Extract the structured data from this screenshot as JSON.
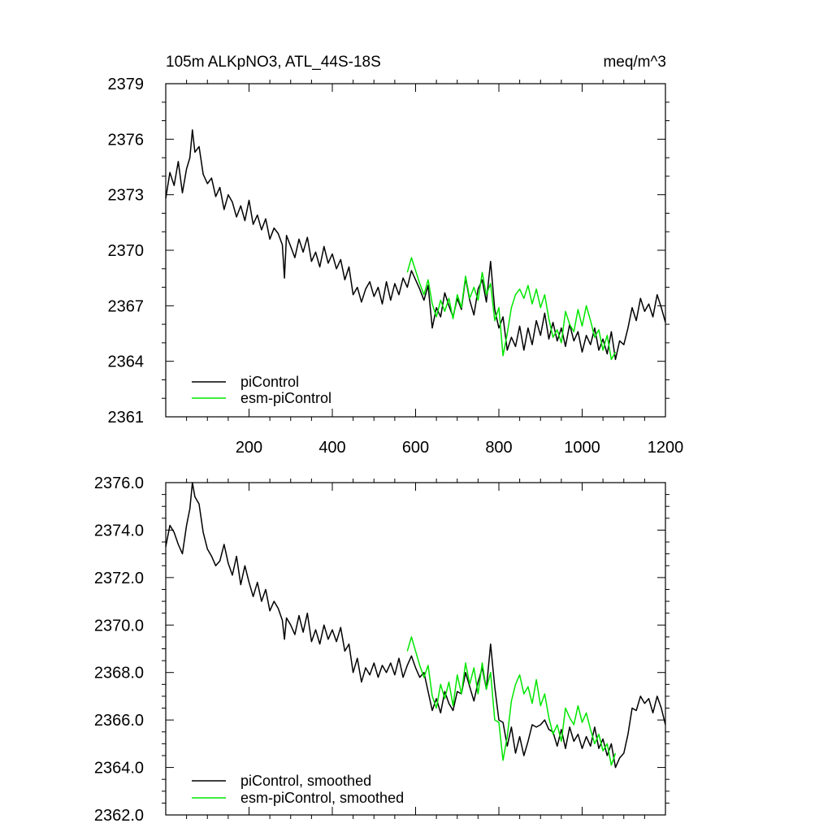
{
  "chart_data": [
    {
      "type": "line",
      "title_left": "105m ALKpNO3, ATL_44S-18S",
      "title_right": "meq/m^3",
      "xlabel": "",
      "ylabel": "",
      "xlim": [
        0,
        1200
      ],
      "ylim": [
        2361,
        2379
      ],
      "x_ticks": [
        200,
        400,
        600,
        800,
        1000,
        1200
      ],
      "x_tick_labels": [
        "200",
        "400",
        "600",
        "800",
        "1000",
        "1200"
      ],
      "y_ticks": [
        2361,
        2364,
        2367,
        2370,
        2373,
        2376,
        2379
      ],
      "y_tick_labels": [
        "2361",
        "2364",
        "2367",
        "2370",
        "2373",
        "2376",
        "2379"
      ],
      "legend_position": "bottom-left",
      "series": [
        {
          "name": "piControl",
          "color": "#000000",
          "x": [
            0,
            10,
            20,
            30,
            40,
            50,
            58,
            64,
            70,
            80,
            90,
            100,
            110,
            120,
            130,
            140,
            150,
            160,
            170,
            180,
            190,
            200,
            210,
            220,
            230,
            240,
            250,
            260,
            270,
            280,
            285,
            290,
            300,
            310,
            320,
            330,
            340,
            350,
            360,
            370,
            380,
            390,
            400,
            410,
            420,
            430,
            440,
            450,
            460,
            470,
            480,
            490,
            500,
            510,
            520,
            530,
            540,
            550,
            560,
            570,
            580,
            590,
            600,
            610,
            620,
            630,
            640,
            650,
            660,
            670,
            680,
            690,
            700,
            710,
            720,
            730,
            740,
            750,
            760,
            770,
            780,
            790,
            800,
            810,
            820,
            830,
            840,
            850,
            860,
            870,
            880,
            890,
            900,
            910,
            920,
            930,
            940,
            950,
            960,
            970,
            980,
            990,
            1000,
            1010,
            1020,
            1030,
            1040,
            1050,
            1060,
            1070,
            1080,
            1090,
            1100,
            1110,
            1120,
            1130,
            1140,
            1150,
            1160,
            1170,
            1180,
            1190,
            1200
          ],
          "values": [
            2372.8,
            2374.2,
            2373.5,
            2374.8,
            2373.1,
            2374.4,
            2375.0,
            2376.5,
            2375.3,
            2375.6,
            2374.1,
            2373.6,
            2373.9,
            2372.9,
            2373.4,
            2372.2,
            2373.0,
            2372.6,
            2371.8,
            2372.4,
            2371.6,
            2372.7,
            2371.4,
            2371.9,
            2371.1,
            2371.7,
            2370.6,
            2371.2,
            2370.9,
            2370.3,
            2368.5,
            2370.8,
            2370.2,
            2369.6,
            2370.6,
            2369.9,
            2370.7,
            2369.4,
            2369.9,
            2369.1,
            2370.2,
            2369.3,
            2369.8,
            2369.0,
            2369.5,
            2368.4,
            2369.1,
            2367.6,
            2368.0,
            2367.2,
            2367.9,
            2368.3,
            2367.5,
            2368.0,
            2367.1,
            2368.3,
            2367.3,
            2368.2,
            2367.6,
            2368.5,
            2368.0,
            2368.9,
            2368.4,
            2367.9,
            2367.3,
            2368.1,
            2365.8,
            2366.9,
            2366.4,
            2367.7,
            2367.0,
            2366.4,
            2367.4,
            2366.8,
            2368.5,
            2367.3,
            2366.5,
            2367.9,
            2368.4,
            2367.2,
            2369.4,
            2366.8,
            2365.8,
            2366.4,
            2364.6,
            2365.3,
            2364.8,
            2365.9,
            2364.6,
            2365.8,
            2364.9,
            2366.2,
            2365.4,
            2366.6,
            2365.2,
            2366.1,
            2365.1,
            2365.8,
            2364.8,
            2366.0,
            2365.1,
            2365.6,
            2364.5,
            2365.4,
            2364.9,
            2365.8,
            2364.6,
            2365.2,
            2364.4,
            2365.6,
            2364.1,
            2365.1,
            2364.9,
            2365.8,
            2366.9,
            2366.2,
            2367.4,
            2366.7,
            2367.1,
            2366.4,
            2367.6,
            2366.9,
            2366.1
          ]
        },
        {
          "name": "esm-piControl",
          "color": "#00e600",
          "x": [
            580,
            590,
            600,
            610,
            620,
            630,
            640,
            650,
            660,
            670,
            680,
            690,
            700,
            710,
            720,
            730,
            740,
            750,
            760,
            770,
            780,
            790,
            800,
            810,
            820,
            830,
            840,
            850,
            860,
            870,
            880,
            890,
            900,
            910,
            920,
            930,
            940,
            950,
            960,
            970,
            980,
            990,
            1000,
            1010,
            1020,
            1030,
            1040,
            1050,
            1060,
            1070,
            1080
          ],
          "values": [
            2368.8,
            2369.6,
            2368.9,
            2368.2,
            2367.6,
            2368.4,
            2367.1,
            2366.4,
            2367.3,
            2366.7,
            2367.4,
            2366.3,
            2367.6,
            2366.9,
            2368.6,
            2367.4,
            2368.0,
            2367.3,
            2368.8,
            2367.6,
            2368.2,
            2366.2,
            2366.9,
            2364.3,
            2365.5,
            2366.9,
            2367.6,
            2367.9,
            2367.4,
            2368.1,
            2367.1,
            2367.9,
            2366.9,
            2367.6,
            2366.3,
            2365.3,
            2365.7,
            2365.0,
            2366.7,
            2366.0,
            2365.6,
            2366.8,
            2365.9,
            2367.0,
            2366.2,
            2365.3,
            2365.7,
            2364.6,
            2365.4,
            2364.1,
            2364.5
          ]
        }
      ]
    },
    {
      "type": "line",
      "xlabel": "",
      "ylabel": "",
      "xlim": [
        0,
        1200
      ],
      "ylim": [
        2362.0,
        2376.0
      ],
      "x_ticks": [
        200,
        400,
        600,
        800,
        1000,
        1200
      ],
      "y_ticks": [
        2362.0,
        2364.0,
        2366.0,
        2368.0,
        2370.0,
        2372.0,
        2374.0,
        2376.0
      ],
      "y_tick_labels": [
        "2362.0",
        "2364.0",
        "2366.0",
        "2368.0",
        "2370.0",
        "2372.0",
        "2374.0",
        "2376.0"
      ],
      "legend_position": "bottom-left",
      "series": [
        {
          "name": "piControl, smoothed",
          "color": "#000000",
          "x": [
            0,
            10,
            20,
            30,
            40,
            50,
            58,
            64,
            70,
            80,
            90,
            100,
            110,
            120,
            130,
            140,
            150,
            160,
            170,
            180,
            190,
            200,
            210,
            220,
            230,
            240,
            250,
            260,
            270,
            280,
            285,
            290,
            300,
            310,
            320,
            330,
            340,
            350,
            360,
            370,
            380,
            390,
            400,
            410,
            420,
            430,
            440,
            450,
            460,
            470,
            480,
            490,
            500,
            510,
            520,
            530,
            540,
            550,
            560,
            570,
            580,
            590,
            600,
            610,
            620,
            630,
            640,
            650,
            660,
            670,
            680,
            690,
            700,
            710,
            720,
            730,
            740,
            750,
            760,
            770,
            780,
            790,
            800,
            810,
            820,
            830,
            840,
            850,
            860,
            870,
            880,
            890,
            900,
            910,
            920,
            930,
            940,
            950,
            960,
            970,
            980,
            990,
            1000,
            1010,
            1020,
            1030,
            1040,
            1050,
            1060,
            1070,
            1080,
            1090,
            1100,
            1110,
            1120,
            1130,
            1140,
            1150,
            1160,
            1170,
            1180,
            1190,
            1200
          ],
          "values": [
            2373.3,
            2374.2,
            2373.9,
            2373.4,
            2373.0,
            2374.2,
            2374.9,
            2376.0,
            2375.4,
            2375.1,
            2373.9,
            2373.2,
            2372.9,
            2372.5,
            2372.7,
            2373.4,
            2372.6,
            2372.1,
            2372.9,
            2371.7,
            2372.5,
            2371.8,
            2371.2,
            2371.8,
            2371.0,
            2371.5,
            2370.6,
            2371.0,
            2370.7,
            2370.2,
            2369.4,
            2370.3,
            2370.0,
            2369.6,
            2370.4,
            2369.7,
            2370.5,
            2369.3,
            2369.8,
            2369.2,
            2370.0,
            2369.4,
            2369.8,
            2369.3,
            2369.9,
            2368.9,
            2369.2,
            2368.0,
            2368.6,
            2367.6,
            2368.2,
            2367.9,
            2368.4,
            2367.8,
            2368.3,
            2368.0,
            2368.4,
            2367.9,
            2368.6,
            2367.8,
            2368.3,
            2368.7,
            2368.2,
            2367.8,
            2368.0,
            2367.2,
            2366.4,
            2366.9,
            2366.3,
            2367.2,
            2366.7,
            2366.4,
            2367.2,
            2367.1,
            2368.0,
            2367.4,
            2366.8,
            2367.6,
            2368.2,
            2367.3,
            2369.2,
            2367.4,
            2366.0,
            2365.9,
            2364.9,
            2365.7,
            2364.6,
            2365.3,
            2364.5,
            2365.1,
            2365.8,
            2365.7,
            2365.8,
            2366.0,
            2365.6,
            2365.5,
            2364.9,
            2365.6,
            2364.8,
            2365.7,
            2365.1,
            2365.4,
            2364.8,
            2365.3,
            2364.9,
            2365.7,
            2364.8,
            2365.2,
            2364.5,
            2365.0,
            2364.0,
            2364.4,
            2364.6,
            2365.4,
            2366.5,
            2366.4,
            2367.0,
            2366.7,
            2366.9,
            2366.3,
            2367.0,
            2366.5,
            2365.8
          ]
        },
        {
          "name": "esm-piControl, smoothed",
          "color": "#00e600",
          "x": [
            580,
            590,
            600,
            610,
            620,
            630,
            640,
            650,
            660,
            670,
            680,
            690,
            700,
            710,
            720,
            730,
            740,
            750,
            760,
            770,
            780,
            790,
            800,
            810,
            820,
            830,
            840,
            850,
            860,
            870,
            880,
            890,
            900,
            910,
            920,
            930,
            940,
            950,
            960,
            970,
            980,
            990,
            1000,
            1010,
            1020,
            1030,
            1040,
            1050,
            1060,
            1070,
            1080
          ],
          "values": [
            2368.9,
            2369.5,
            2368.9,
            2368.3,
            2367.8,
            2368.3,
            2367.0,
            2366.5,
            2367.5,
            2366.9,
            2367.6,
            2366.6,
            2367.9,
            2367.1,
            2368.4,
            2367.5,
            2368.2,
            2367.1,
            2368.4,
            2367.3,
            2368.0,
            2366.0,
            2365.9,
            2364.3,
            2365.3,
            2366.8,
            2367.5,
            2367.9,
            2367.1,
            2367.4,
            2366.7,
            2367.7,
            2366.6,
            2367.1,
            2366.1,
            2365.4,
            2365.8,
            2365.1,
            2366.5,
            2366.1,
            2365.8,
            2366.6,
            2365.9,
            2366.3,
            2365.6,
            2365.0,
            2365.4,
            2364.7,
            2365.0,
            2364.1,
            2364.6
          ]
        }
      ]
    }
  ]
}
